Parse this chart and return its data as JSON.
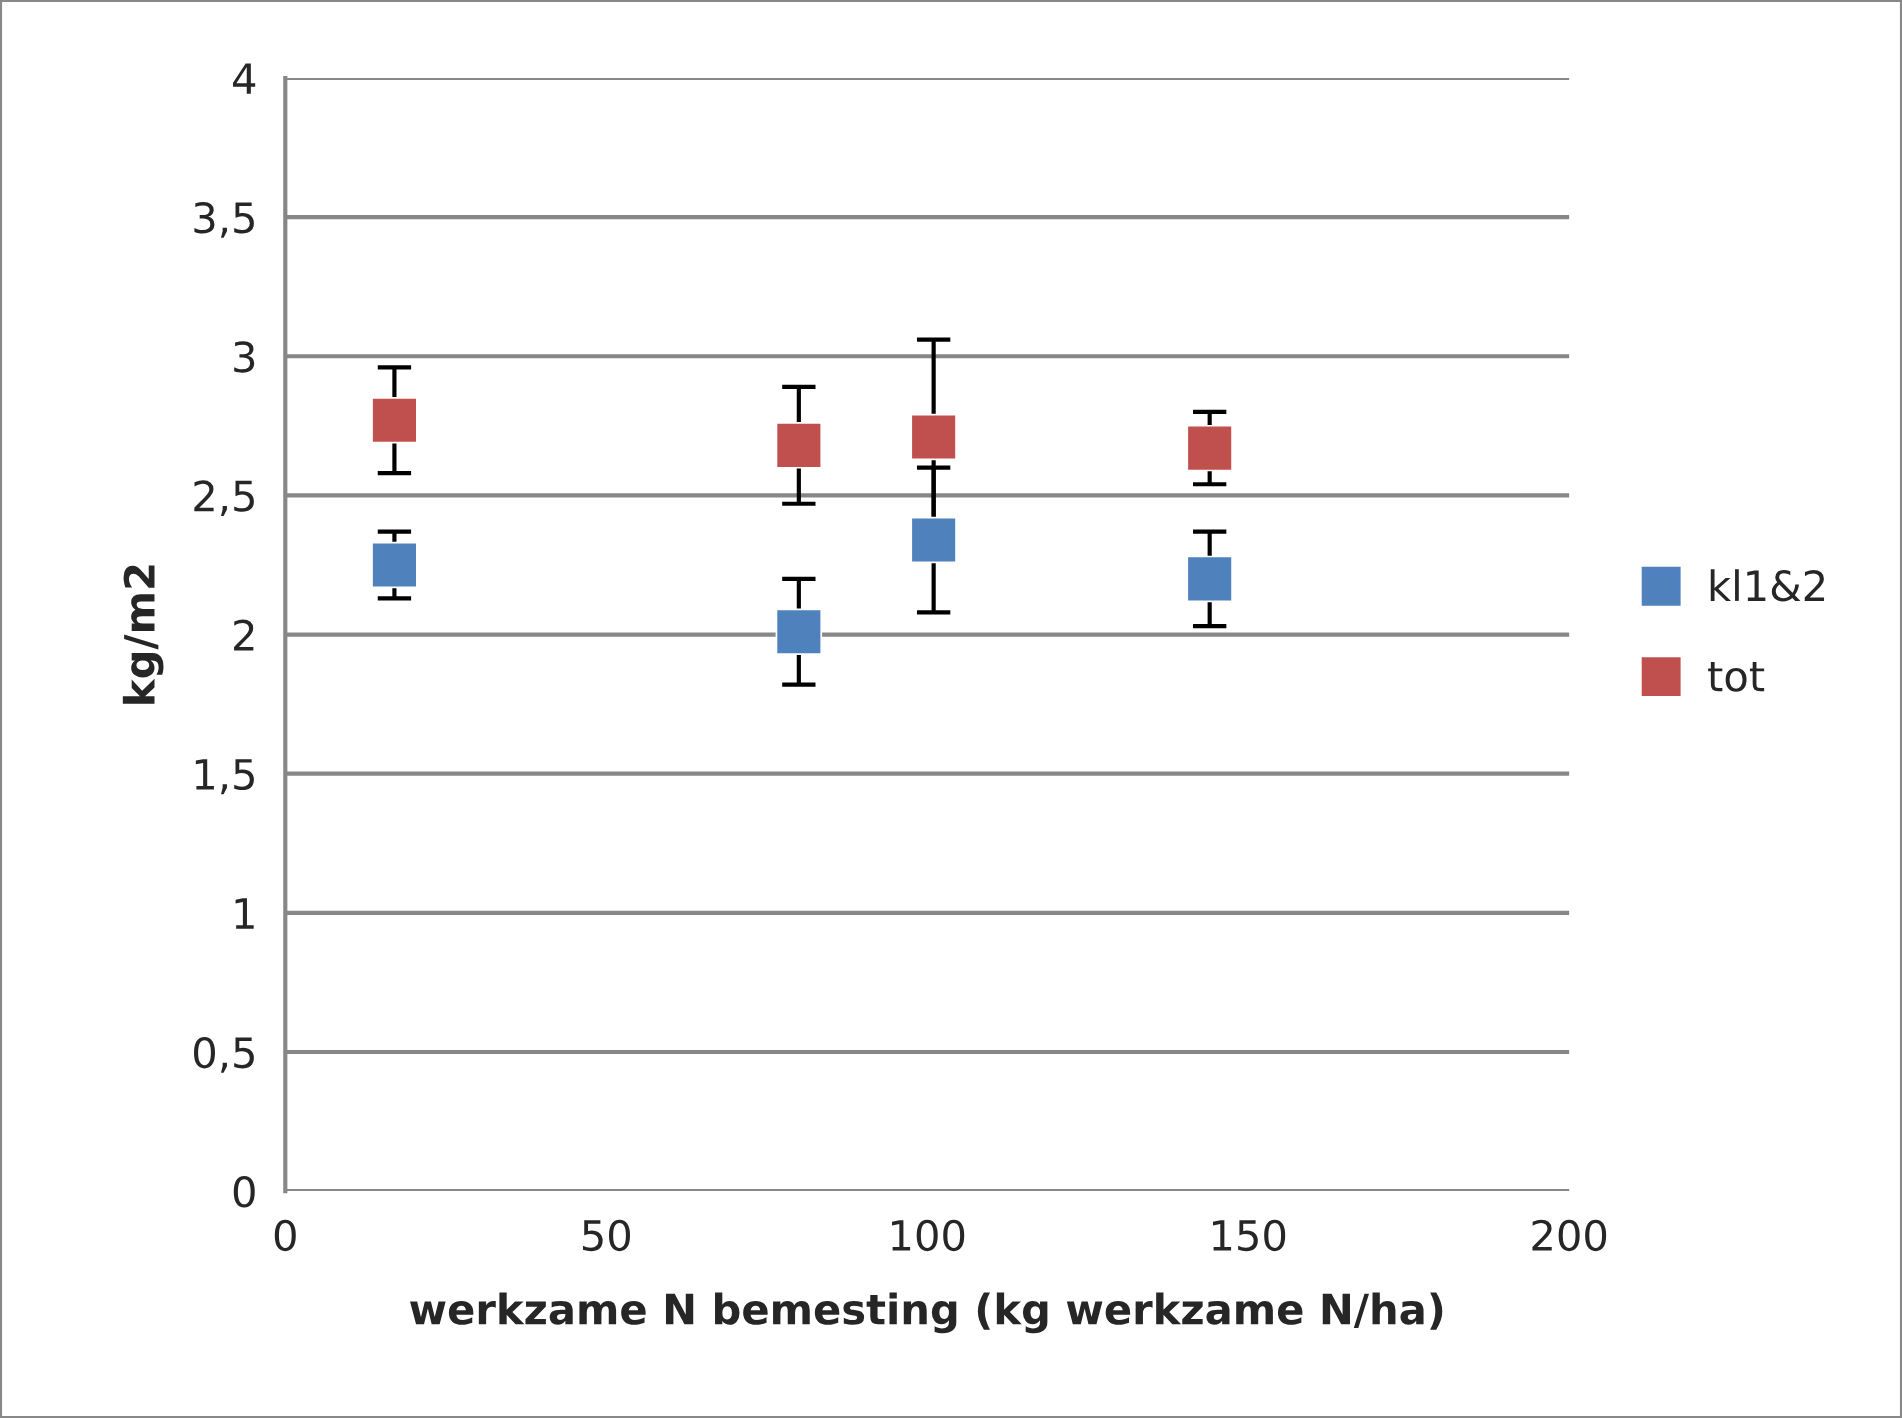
{
  "chart_data": {
    "type": "scatter",
    "xlabel": "werkzame N bemesting (kg werkzame N/ha)",
    "ylabel": "kg/m2",
    "x": [
      17,
      80,
      101,
      144
    ],
    "series": [
      {
        "name": "kl1&2",
        "color": "#4f81bd",
        "values": [
          2.25,
          2.01,
          2.34,
          2.2
        ],
        "errors": [
          0.12,
          0.19,
          0.26,
          0.17
        ]
      },
      {
        "name": "tot",
        "color": "#c0504d",
        "values": [
          2.77,
          2.68,
          2.71,
          2.67
        ],
        "errors": [
          0.19,
          0.21,
          0.35,
          0.13
        ]
      }
    ],
    "xlim": [
      0,
      200
    ],
    "xticks": [
      0,
      50,
      100,
      150,
      200
    ],
    "ylim": [
      0,
      4
    ],
    "yticks": [
      0,
      {
        "value": 0.5,
        "label": "0,5"
      },
      1,
      {
        "value": 1.5,
        "label": "1,5"
      },
      2,
      {
        "value": 2.5,
        "label": "2,5"
      },
      3,
      {
        "value": 3.5,
        "label": "3,5"
      },
      4
    ],
    "grid": "y",
    "legend": "right",
    "marker": "square"
  }
}
